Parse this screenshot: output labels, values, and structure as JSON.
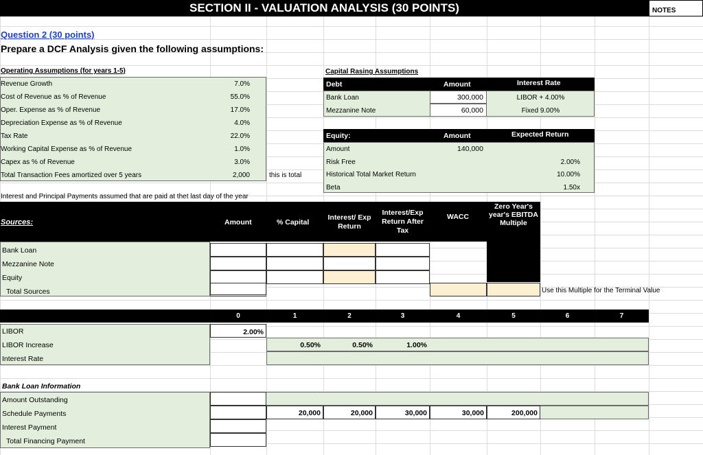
{
  "title": "SECTION II - VALUATION ANALYSIS (30 POINTS)",
  "notes": "NOTES",
  "question": {
    "heading": "Question 2 (30 points)",
    "prompt": "Prepare a DCF Analysis given the following assumptions:"
  },
  "operating": {
    "heading": "Operating Assumptions (for years 1-5)",
    "rows": [
      {
        "label": "Revenue Growth",
        "value": "7.0%"
      },
      {
        "label": "Cost of Revenue as % of Revenue",
        "value": "55.0%"
      },
      {
        "label": "Oper. Expense as % of Revenue",
        "value": "17.0%"
      },
      {
        "label": "Depreciation Expense as % of Revenue",
        "value": "4.0%"
      },
      {
        "label": "Tax Rate",
        "value": "22.0%"
      },
      {
        "label": "Working Capital Expense as % of Revenue",
        "value": "1.0%"
      },
      {
        "label": "Capex as % of Revenue",
        "value": "3.0%"
      },
      {
        "label": "Total Transaction Fees amortized over 5 years",
        "value": "2,000"
      }
    ],
    "note": "this is total"
  },
  "capital": {
    "heading": "Capital Rasing Assumptions",
    "debt_header": {
      "col1": "Debt",
      "col2": "Amount",
      "col3": "Interest Rate"
    },
    "debt_rows": [
      {
        "label": "Bank Loan",
        "amount": "300,000",
        "rate": "LIBOR + 4.00%"
      },
      {
        "label": "Mezzanine Note",
        "amount": "60,000",
        "rate": "Fixed 9.00%"
      }
    ],
    "equity_header": {
      "col1": "Equity:",
      "col2": "Amount",
      "col3": "Expected Return"
    },
    "equity_rows": [
      {
        "label": "Amount",
        "amount": "140,000",
        "value": ""
      },
      {
        "label": "Risk Free",
        "amount": "",
        "value": "2.00%"
      },
      {
        "label": "Historical Total Market Return",
        "amount": "",
        "value": "10.00%"
      },
      {
        "label": "Beta",
        "amount": "",
        "value": "1.50x"
      }
    ]
  },
  "interest_note": "Interest and Principal Payments assumed that are paid at thet last day of the year",
  "sources": {
    "headers": {
      "sources": "Sources:",
      "amount": "Amount",
      "pct": "% Capital",
      "interest": "Interest/ Exp Return",
      "after_tax": "Interest/Exp Return After Tax",
      "wacc": "WACC",
      "multiple": "Zero Year's year's EBITDA Multiple"
    },
    "rows": [
      "Bank Loan",
      "Mezzanine Note",
      "Equity",
      "Total Sources"
    ],
    "terminal_note": "Use this Multiple for the Terminal Value"
  },
  "timeline": {
    "years": [
      "0",
      "1",
      "2",
      "3",
      "4",
      "5",
      "6",
      "7"
    ],
    "libor_label": "LIBOR",
    "libor_value": "2.00%",
    "increase_label": "LIBOR Increase",
    "increases": [
      "0.50%",
      "0.50%",
      "1.00%"
    ],
    "rate_label": "Interest Rate"
  },
  "bank_loan": {
    "heading": "Bank Loan Information",
    "rows": [
      "Amount Outstanding",
      "Schedule Payments",
      "Interest Payment",
      "Total Financing Payment"
    ],
    "payments": [
      "20,000",
      "20,000",
      "30,000",
      "30,000",
      "200,000"
    ]
  }
}
